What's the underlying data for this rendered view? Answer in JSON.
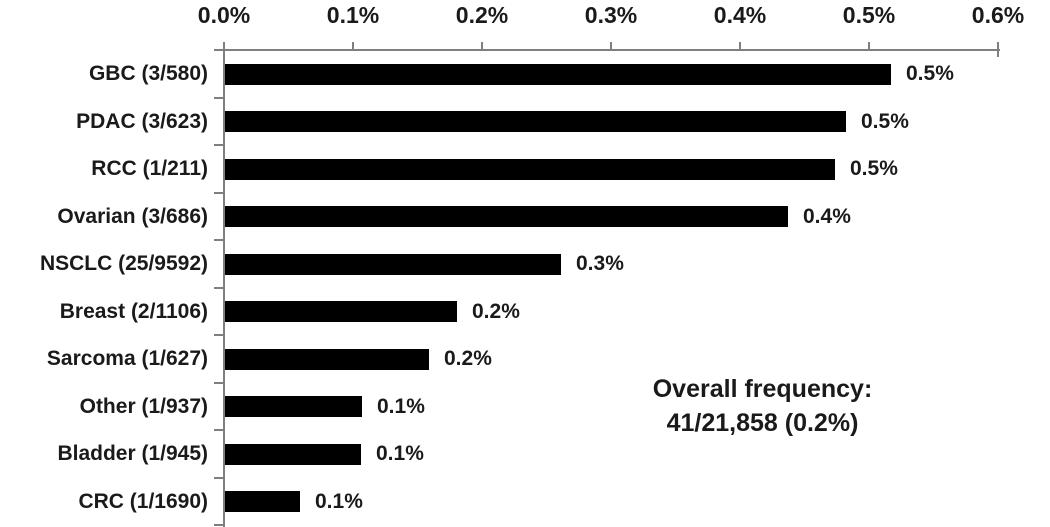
{
  "chart_data": {
    "type": "bar",
    "orientation": "horizontal",
    "title": "",
    "xlabel": "",
    "ylabel": "",
    "categories": [
      "GBC (3/580)",
      "PDAC (3/623)",
      "RCC (1/211)",
      "Ovarian (3/686)",
      "NSCLC (25/9592)",
      "Breast (2/1106)",
      "Sarcoma (1/627)",
      "Other (1/937)",
      "Bladder (1/945)",
      "CRC (1/1690)"
    ],
    "values": [
      0.517,
      0.482,
      0.474,
      0.437,
      0.261,
      0.181,
      0.159,
      0.107,
      0.106,
      0.059
    ],
    "value_labels": [
      "0.5%",
      "0.5%",
      "0.5%",
      "0.4%",
      "0.3%",
      "0.2%",
      "0.2%",
      "0.1%",
      "0.1%",
      "0.1%"
    ],
    "x_ticks": [
      "0.0%",
      "0.1%",
      "0.2%",
      "0.3%",
      "0.4%",
      "0.5%",
      "0.6%"
    ],
    "x_tick_values": [
      0.0,
      0.1,
      0.2,
      0.3,
      0.4,
      0.5,
      0.6
    ],
    "xlim": [
      0.0,
      0.6
    ],
    "grid": false,
    "legend": "none",
    "bar_color": "#000000",
    "axis_color": "#7f7f7f",
    "text_color": "#1a1a1a",
    "annotation": "Overall frequency: 41/21,858 (0.2%)"
  },
  "annotation": {
    "line1": "Overall frequency:",
    "line2": "41/21,858 (0.2%)"
  }
}
